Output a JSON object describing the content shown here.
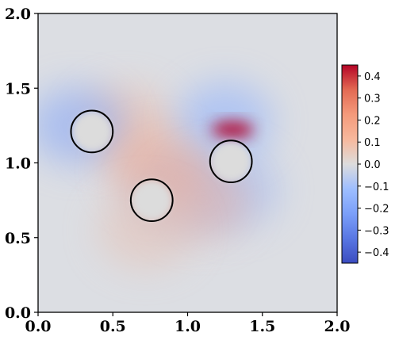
{
  "chart_data": {
    "type": "heatmap",
    "title": "",
    "xlabel": "",
    "ylabel": "",
    "xlim": [
      0.0,
      2.0
    ],
    "ylim": [
      0.0,
      2.0
    ],
    "x_ticks": [
      "0.0",
      "0.5",
      "1.0",
      "1.5",
      "2.0"
    ],
    "y_ticks": [
      "0.0",
      "0.5",
      "1.0",
      "1.5",
      "2.0"
    ],
    "colormap": "coolwarm",
    "colorbar": {
      "range": [
        -0.45,
        0.45
      ],
      "ticks": [
        "0.4",
        "0.3",
        "0.2",
        "0.1",
        "0.0",
        "−0.1",
        "−0.2",
        "−0.3",
        "−0.4"
      ],
      "tick_values": [
        0.4,
        0.3,
        0.2,
        0.1,
        0.0,
        -0.1,
        -0.2,
        -0.3,
        -0.4
      ],
      "position": "right"
    },
    "circles": [
      {
        "cx": 0.36,
        "cy": 1.21,
        "r": 0.14
      },
      {
        "cx": 0.76,
        "cy": 0.75,
        "r": 0.14
      },
      {
        "cx": 1.29,
        "cy": 1.01,
        "r": 0.14
      }
    ],
    "field_features": [
      {
        "x": 0.58,
        "y": 1.25,
        "value": 0.08
      },
      {
        "x": 1.25,
        "y": 1.28,
        "value": -0.15
      },
      {
        "x": 1.3,
        "y": 1.22,
        "value": 0.45
      },
      {
        "x": 1.29,
        "y": 0.82,
        "value": -0.12
      },
      {
        "x": 0.26,
        "y": 1.25,
        "value": -0.18
      },
      {
        "x": 0.95,
        "y": 0.8,
        "value": -0.12
      },
      {
        "x": 0.8,
        "y": 0.95,
        "value": 0.12
      },
      {
        "x": 1.1,
        "y": 0.75,
        "value": 0.09
      },
      {
        "x": 0.72,
        "y": 0.55,
        "value": 0.06
      }
    ]
  }
}
